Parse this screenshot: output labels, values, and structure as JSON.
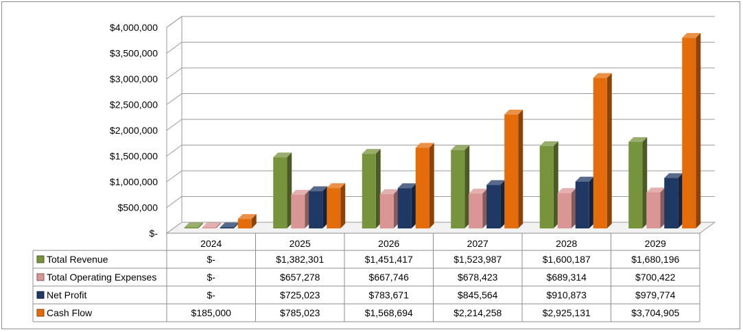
{
  "chart_data": {
    "type": "bar",
    "categories": [
      "2024",
      "2025",
      "2026",
      "2027",
      "2028",
      "2029"
    ],
    "series": [
      {
        "name": "Total Revenue",
        "color": "#77933c",
        "values": [
          0,
          1382301,
          1451417,
          1523987,
          1600187,
          1680196
        ],
        "labels": [
          "$-",
          "$1,382,301",
          "$1,451,417",
          "$1,523,987",
          "$1,600,187",
          "$1,680,196"
        ]
      },
      {
        "name": "Total Operating Expenses",
        "color": "#d99694",
        "values": [
          0,
          657278,
          667746,
          678423,
          689314,
          700422
        ],
        "labels": [
          "$-",
          "$657,278",
          "$667,746",
          "$678,423",
          "$689,314",
          "$700,422"
        ]
      },
      {
        "name": "Net Profit",
        "color": "#1f3864",
        "values": [
          0,
          725023,
          783671,
          845564,
          910873,
          979774
        ],
        "labels": [
          "$-",
          "$725,023",
          "$783,671",
          "$845,564",
          "$910,873",
          "$979,774"
        ]
      },
      {
        "name": "Cash Flow",
        "color": "#e46c0a",
        "values": [
          185000,
          785023,
          1568694,
          2214258,
          2925131,
          3704905
        ],
        "labels": [
          "$185,000",
          "$785,023",
          "$1,568,694",
          "$2,214,258",
          "$2,925,131",
          "$3,704,905"
        ]
      }
    ],
    "y_tick_labels": [
      "$-",
      "$500,000",
      "$1,000,000",
      "$1,500,000",
      "$2,000,000",
      "$2,500,000",
      "$3,000,000",
      "$3,500,000",
      "$4,000,000"
    ],
    "ylim": [
      0,
      4000000
    ],
    "grid": true,
    "legend": "data-table"
  }
}
